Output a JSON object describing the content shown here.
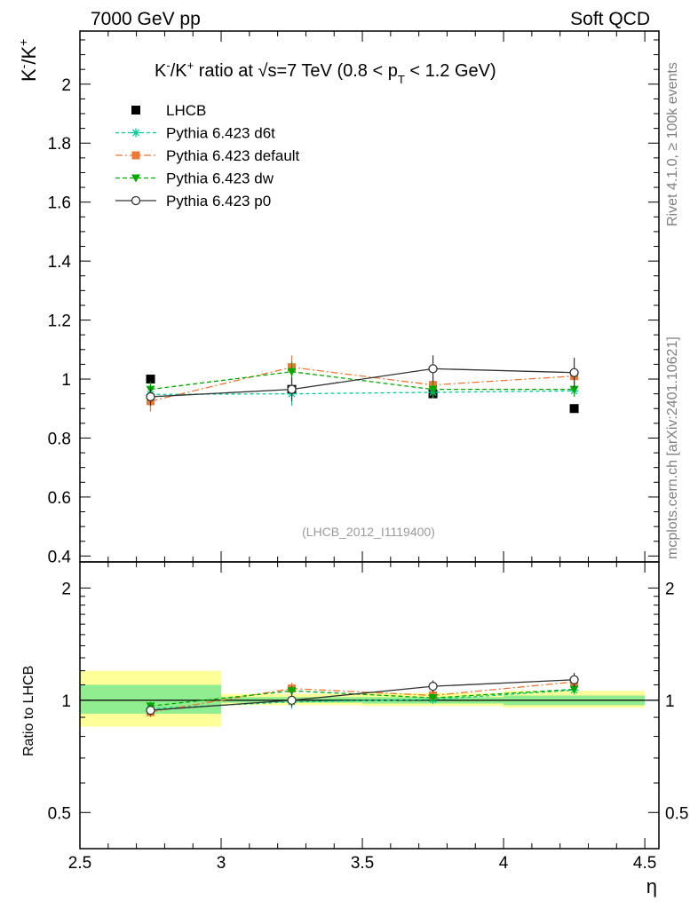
{
  "header": {
    "left": "7000 GeV pp",
    "right": "Soft QCD"
  },
  "side_labels": {
    "rivet": "Rivet 4.1.0, ≥ 100k events",
    "mcplots": "mcplots.cern.ch [arXiv:2401.10621]"
  },
  "watermark": "(LHCB_2012_I1119400)",
  "chart_data": {
    "type": "line",
    "title": "K⁻/K⁺ ratio at √s=7 TeV (0.8 < p_T < 1.2 GeV)",
    "title_parts": {
      "main_a": "K",
      "sup_minus": "-",
      "slash": "/K",
      "sup_plus": "+",
      "mid": " ratio at ",
      "sqrt": "√",
      "s_energy": "s=7 TeV (0.8 < p",
      "sub_T": "T",
      "tail": " < 1.2 GeV)"
    },
    "xlabel": "η",
    "ylabel": {
      "base": "K",
      "sup1": "-",
      "slash": "/K",
      "sup2": "+"
    },
    "ratio_ylabel": "Ratio to LHCB",
    "xlim": [
      2.5,
      4.55
    ],
    "ylim": [
      0.38,
      2.18
    ],
    "ratio_ylim": [
      0.4,
      2.35
    ],
    "x_ticks": [
      {
        "v": 2.5,
        "label": "2.5"
      },
      {
        "v": 3,
        "label": "3"
      },
      {
        "v": 3.5,
        "label": "3.5"
      },
      {
        "v": 4,
        "label": "4"
      },
      {
        "v": 4.5,
        "label": "4.5"
      }
    ],
    "y_ticks": [
      {
        "v": 0.4,
        "label": "0.4"
      },
      {
        "v": 0.6,
        "label": "0.6"
      },
      {
        "v": 0.8,
        "label": "0.8"
      },
      {
        "v": 1.0,
        "label": "1"
      },
      {
        "v": 1.2,
        "label": "1.2"
      },
      {
        "v": 1.4,
        "label": "1.4"
      },
      {
        "v": 1.6,
        "label": "1.6"
      },
      {
        "v": 1.8,
        "label": "1.8"
      },
      {
        "v": 2.0,
        "label": "2"
      }
    ],
    "ratio_y_ticks": [
      {
        "v": 0.5,
        "label": "0.5"
      },
      {
        "v": 1.0,
        "label": "1"
      },
      {
        "v": 2.0,
        "label": "2"
      }
    ],
    "bins": [
      [
        2.5,
        3.0
      ],
      [
        3.0,
        3.5
      ],
      [
        3.5,
        4.0
      ],
      [
        4.0,
        4.5
      ]
    ],
    "x": [
      2.75,
      3.25,
      3.75,
      4.25
    ],
    "data": {
      "name": "LHCB",
      "values": [
        1.0,
        0.965,
        0.95,
        0.9
      ],
      "ratio_band_inner": [
        [
          0.92,
          1.1
        ],
        [
          0.985,
          1.02
        ],
        [
          0.98,
          1.02
        ],
        [
          0.97,
          1.03
        ]
      ],
      "ratio_band_outer": [
        [
          0.85,
          1.2
        ],
        [
          0.97,
          1.04
        ],
        [
          0.965,
          1.045
        ],
        [
          0.955,
          1.06
        ]
      ]
    },
    "series": [
      {
        "name": "Pythia 6.423 d6t",
        "color": "#00cc99",
        "marker": "star",
        "dash": "4,3",
        "values": [
          0.948,
          0.95,
          0.955,
          0.96
        ],
        "errors": [
          0.02,
          0.04,
          0.02,
          0.02
        ],
        "ratio": [
          0.95,
          0.99,
          1.005,
          1.065
        ],
        "ratio_err": [
          0.02,
          0.04,
          0.02,
          0.02
        ]
      },
      {
        "name": "Pythia 6.423 default",
        "color": "#ee7733",
        "marker": "square",
        "dash": "8,3,2,3",
        "values": [
          0.925,
          1.04,
          0.98,
          1.01
        ],
        "errors": [
          0.035,
          0.04,
          0.03,
          0.03
        ],
        "ratio": [
          0.93,
          1.075,
          1.03,
          1.12
        ],
        "ratio_err": [
          0.03,
          0.04,
          0.03,
          0.03
        ]
      },
      {
        "name": "Pythia 6.423 dw",
        "color": "#00aa00",
        "marker": "triangle-down",
        "dash": "5,3",
        "values": [
          0.965,
          1.025,
          0.965,
          0.965
        ],
        "errors": [
          0.025,
          0.035,
          0.025,
          0.025
        ],
        "ratio": [
          0.965,
          1.06,
          1.015,
          1.07
        ],
        "ratio_err": [
          0.025,
          0.035,
          0.025,
          0.025
        ]
      },
      {
        "name": "Pythia 6.423 p0",
        "color": "#333333",
        "marker": "circle-open",
        "dash": "",
        "values": [
          0.94,
          0.965,
          1.035,
          1.022
        ],
        "errors": [
          0.03,
          0.04,
          0.045,
          0.05
        ],
        "ratio": [
          0.94,
          1.0,
          1.09,
          1.135
        ],
        "ratio_err": [
          0.03,
          0.04,
          0.04,
          0.05
        ]
      }
    ]
  },
  "colors": {
    "band_inner": "#90ee90",
    "band_outer": "#ffff99",
    "data_marker": "#000000"
  }
}
